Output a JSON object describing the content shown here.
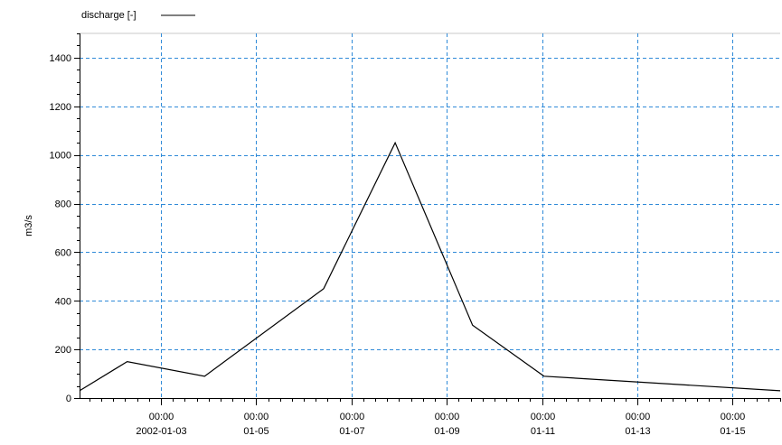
{
  "chart_data": {
    "type": "line",
    "ylabel": "m3/s",
    "legend": {
      "label": "discharge [-]",
      "placement": "top-left"
    },
    "ylim": [
      0,
      1500
    ],
    "xlim": [
      "2002-01-01T07:00",
      "2002-01-15T24:00"
    ],
    "grid": true,
    "yticks": [
      0,
      200,
      400,
      600,
      800,
      1000,
      1200,
      1400
    ],
    "xticks": [
      {
        "date": "2002-01-03T00:00",
        "time": "00:00",
        "label": "2002-01-03"
      },
      {
        "date": "2002-01-05T00:00",
        "time": "00:00",
        "label": "01-05"
      },
      {
        "date": "2002-01-07T00:00",
        "time": "00:00",
        "label": "01-07"
      },
      {
        "date": "2002-01-09T00:00",
        "time": "00:00",
        "label": "01-09"
      },
      {
        "date": "2002-01-11T00:00",
        "time": "00:00",
        "label": "01-11"
      },
      {
        "date": "2002-01-13T00:00",
        "time": "00:00",
        "label": "01-13"
      },
      {
        "date": "2002-01-15T00:00",
        "time": "00:00",
        "label": "01-15"
      }
    ],
    "series": [
      {
        "name": "discharge [-]",
        "color": "#000000",
        "x": [
          "2002-01-01T07:00",
          "2002-01-02T07:00",
          "2002-01-03T22:00",
          "2002-01-06T10:00",
          "2002-01-07T22:00",
          "2002-01-09T13:00",
          "2002-01-11T01:00",
          "2002-01-15T24:00"
        ],
        "values": [
          30,
          150,
          90,
          450,
          1050,
          300,
          90,
          30
        ]
      }
    ]
  }
}
